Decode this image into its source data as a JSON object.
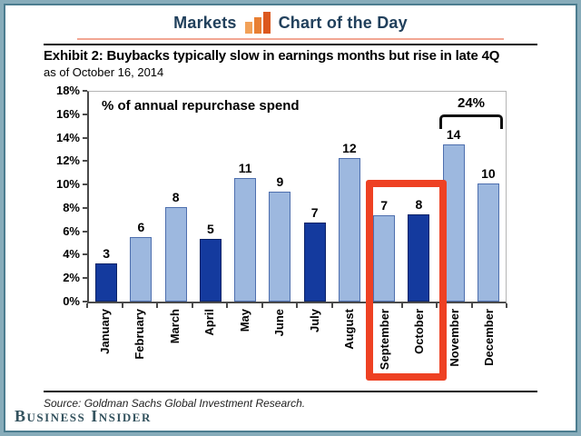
{
  "header": {
    "left_label": "Markets",
    "right_label": "Chart of the Day",
    "icon": "bar-chart-icon"
  },
  "exhibit": {
    "title": "Exhibit 2: Buybacks typically slow in earnings months but rise in late 4Q",
    "subtitle": "as of October 16, 2014"
  },
  "chart_data": {
    "type": "bar",
    "title": "% of annual repurchase spend",
    "categories": [
      "January",
      "February",
      "March",
      "April",
      "May",
      "June",
      "July",
      "August",
      "September",
      "October",
      "November",
      "December"
    ],
    "labels": [
      3,
      6,
      8,
      5,
      11,
      9,
      7,
      12,
      7,
      8,
      14,
      10
    ],
    "values": [
      3.3,
      5.5,
      8.1,
      5.4,
      10.6,
      9.4,
      6.8,
      12.3,
      7.4,
      7.5,
      13.5,
      10.1
    ],
    "emphasized_categories": [
      "January",
      "April",
      "July",
      "October"
    ],
    "ylabel_ticks": [
      "18%",
      "16%",
      "14%",
      "12%",
      "10%",
      "8%",
      "6%",
      "4%",
      "2%",
      "0%"
    ],
    "ylim": [
      0,
      18
    ],
    "grid": false,
    "legend": null,
    "annotations": {
      "highlight_box": {
        "categories": [
          "September",
          "October"
        ],
        "color": "#EE4123"
      },
      "bracket": {
        "categories": [
          "November",
          "December"
        ],
        "label": "24%"
      }
    }
  },
  "footer": {
    "source": "Source: Goldman Sachs Global Investment Research.",
    "logo": "Business Insider"
  },
  "colors": {
    "bar_light": "#9DB8DF",
    "bar_light_border": "#4E6FAE",
    "bar_dark": "#143A9E",
    "bar_dark_border": "#0B2266",
    "highlight_red": "#EE4123",
    "frame_teal_outer": "#87ACBA",
    "frame_teal_inner": "#4C7D8F",
    "header_navy": "#21405C",
    "divider_salmon": "#F2A693",
    "icon_orange_light": "#F2A158",
    "icon_orange_mid": "#E87F33",
    "icon_orange_dark": "#DC581E",
    "logo_slate": "#33525E"
  }
}
